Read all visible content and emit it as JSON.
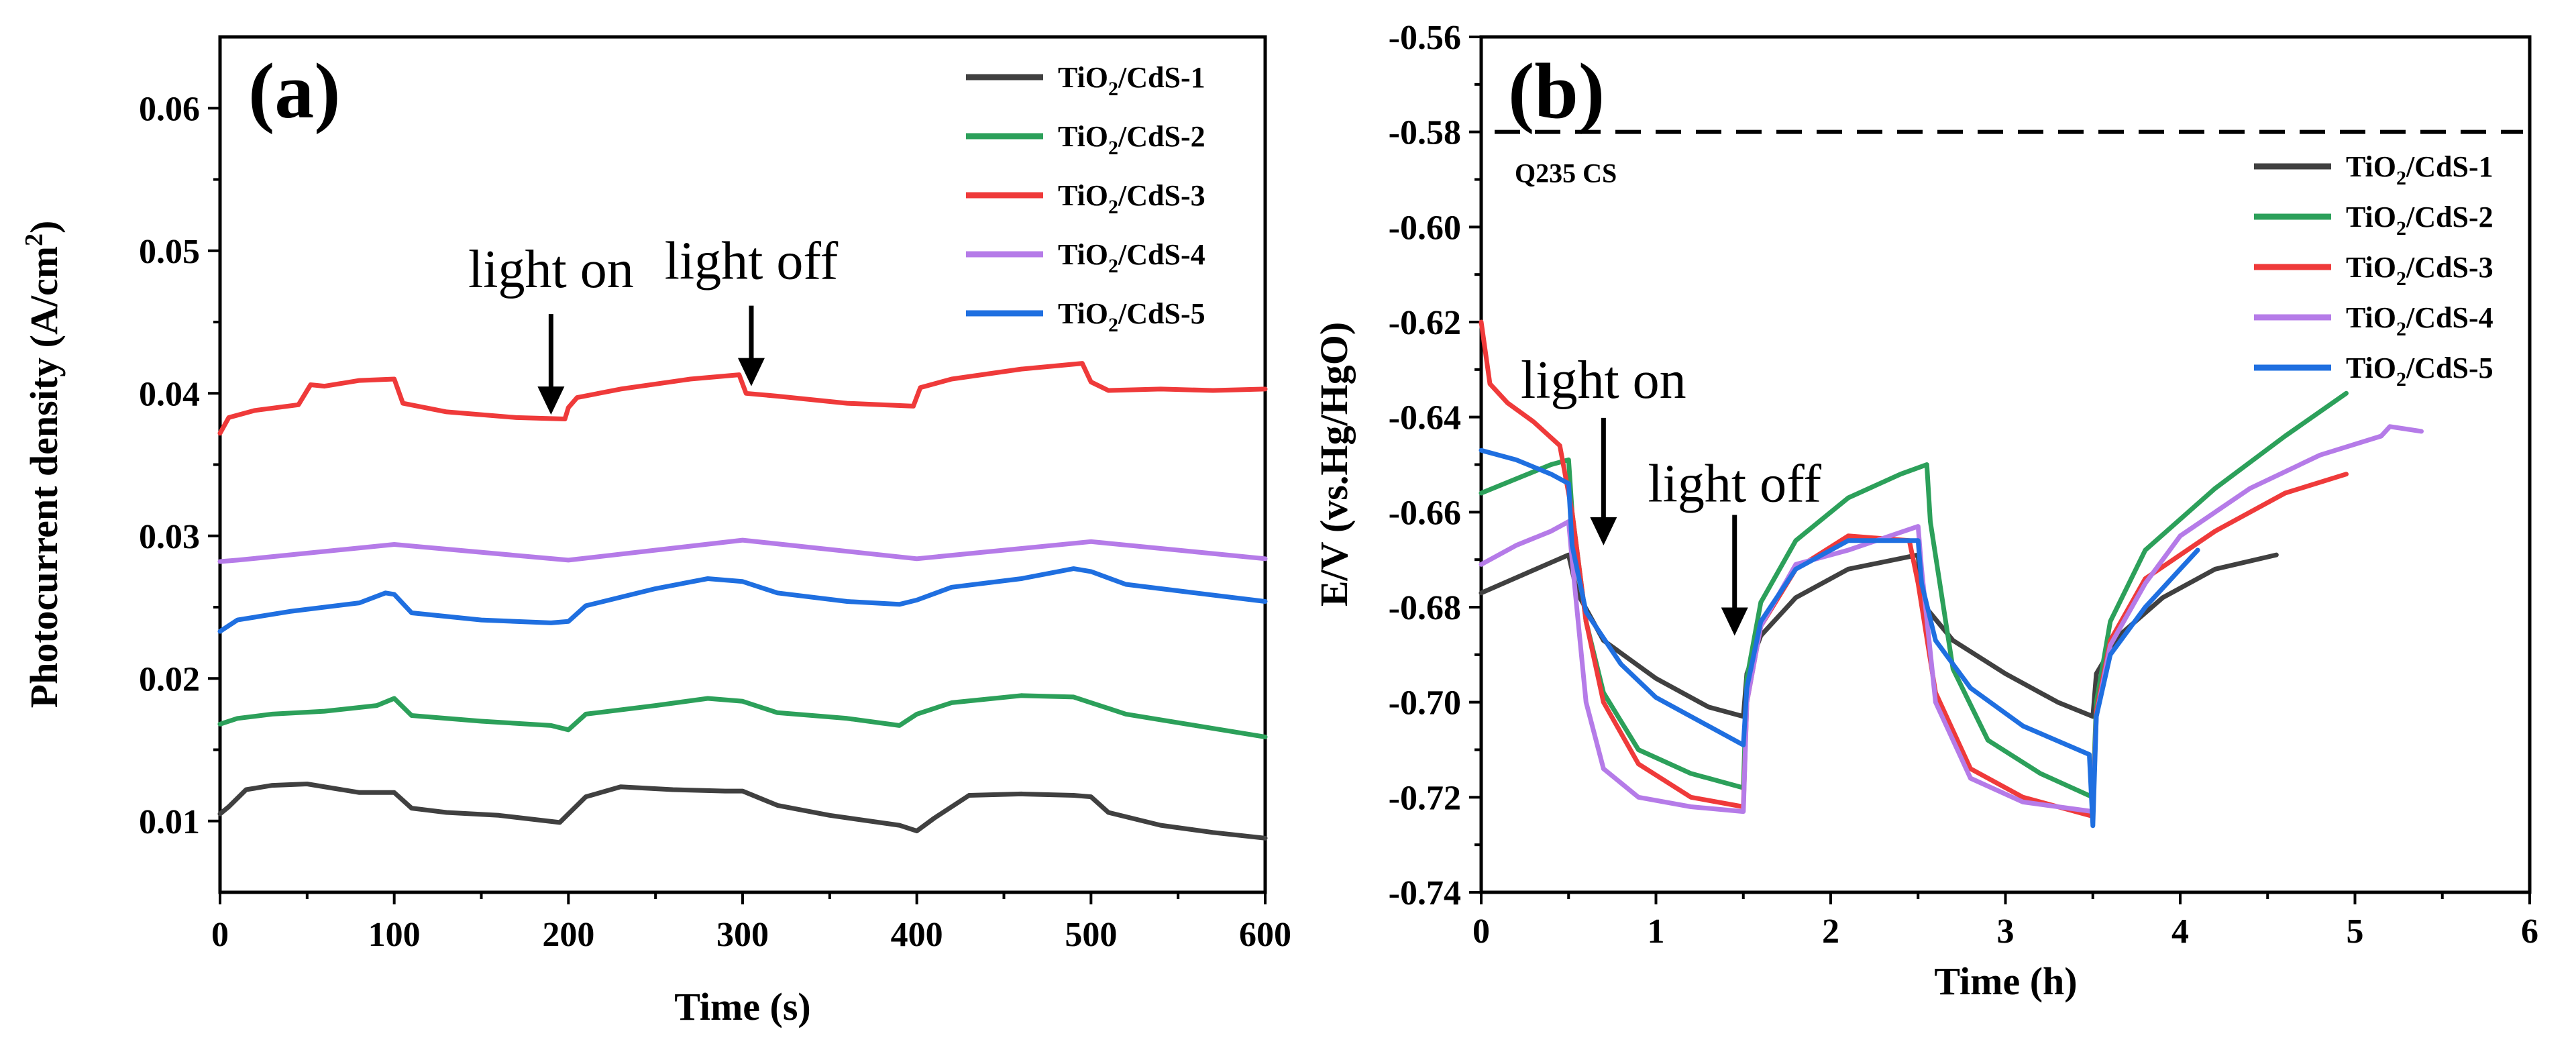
{
  "colors": {
    "s1": "#404040",
    "s2": "#2ca05a",
    "s3": "#ef3a3a",
    "s4": "#b57be8",
    "s5": "#1f6fe0"
  },
  "chart_data": [
    {
      "panel_label": "(a)",
      "type": "line",
      "xlabel": "Time (s)",
      "ylabel_main": "Photocurrent density (A/cm",
      "ylabel_sup": "2",
      "ylabel_end": ")",
      "xlim": [
        0,
        600
      ],
      "ylim": [
        0.005,
        0.065
      ],
      "xticks": [
        0,
        100,
        200,
        300,
        400,
        500,
        600
      ],
      "yticks": [
        0.01,
        0.02,
        0.03,
        0.04,
        0.05,
        0.06
      ],
      "ytick_labels": [
        "0.01",
        "0.02",
        "0.03",
        "0.04",
        "0.05",
        "0.06"
      ],
      "annotations": [
        {
          "text": "light on",
          "at": [
            190,
            0.0385
          ]
        },
        {
          "text": "light off",
          "at": [
            305,
            0.0405
          ]
        }
      ],
      "series": [
        {
          "name_base": "TiO",
          "name_sub": "2",
          "name_rest": "/CdS-1",
          "color_key": "s1",
          "x": [
            0,
            5,
            15,
            30,
            50,
            80,
            100,
            110,
            130,
            160,
            195,
            200,
            210,
            230,
            260,
            290,
            300,
            320,
            350,
            390,
            400,
            410,
            430,
            460,
            490,
            500,
            510,
            540,
            570,
            600
          ],
          "y": [
            0.0105,
            0.011,
            0.0122,
            0.0125,
            0.0126,
            0.012,
            0.012,
            0.0109,
            0.0106,
            0.0104,
            0.0099,
            0.0105,
            0.0117,
            0.0124,
            0.0122,
            0.0121,
            0.0121,
            0.0111,
            0.0104,
            0.0097,
            0.0093,
            0.0102,
            0.0118,
            0.0119,
            0.0118,
            0.0117,
            0.0106,
            0.0097,
            0.0092,
            0.0088
          ]
        },
        {
          "name_base": "TiO",
          "name_sub": "2",
          "name_rest": "/CdS-2",
          "color_key": "s2",
          "x": [
            0,
            10,
            30,
            60,
            90,
            100,
            110,
            150,
            190,
            200,
            210,
            250,
            280,
            300,
            320,
            360,
            390,
            400,
            420,
            460,
            490,
            500,
            520,
            560,
            600
          ],
          "y": [
            0.0168,
            0.0172,
            0.0175,
            0.0177,
            0.0181,
            0.0186,
            0.0174,
            0.017,
            0.0167,
            0.0164,
            0.0175,
            0.0181,
            0.0186,
            0.0184,
            0.0176,
            0.0172,
            0.0167,
            0.0175,
            0.0183,
            0.0188,
            0.0187,
            0.0183,
            0.0175,
            0.0167,
            0.0159
          ]
        },
        {
          "name_base": "TiO",
          "name_sub": "2",
          "name_rest": "/CdS-3",
          "color_key": "s3",
          "x": [
            0,
            5,
            20,
            45,
            52,
            60,
            80,
            100,
            105,
            130,
            170,
            198,
            200,
            205,
            230,
            270,
            298,
            302,
            320,
            360,
            398,
            402,
            420,
            460,
            495,
            500,
            510,
            540,
            570,
            600
          ],
          "y": [
            0.0372,
            0.0383,
            0.0388,
            0.0392,
            0.0406,
            0.0405,
            0.0409,
            0.041,
            0.0393,
            0.0387,
            0.0383,
            0.0382,
            0.039,
            0.0397,
            0.0403,
            0.041,
            0.0413,
            0.04,
            0.0398,
            0.0393,
            0.0391,
            0.0404,
            0.041,
            0.0417,
            0.0421,
            0.0408,
            0.0402,
            0.0403,
            0.0402,
            0.0403
          ]
        },
        {
          "name_base": "TiO",
          "name_sub": "2",
          "name_rest": "/CdS-4",
          "color_key": "s4",
          "x": [
            0,
            10,
            100,
            200,
            300,
            400,
            500,
            600
          ],
          "y": [
            0.0282,
            0.0283,
            0.0294,
            0.0283,
            0.0297,
            0.0284,
            0.0296,
            0.0284
          ]
        },
        {
          "name_base": "TiO",
          "name_sub": "2",
          "name_rest": "/CdS-5",
          "color_key": "s5",
          "x": [
            0,
            10,
            40,
            80,
            95,
            100,
            110,
            150,
            190,
            200,
            210,
            250,
            280,
            300,
            320,
            360,
            390,
            400,
            420,
            460,
            490,
            500,
            520,
            560,
            600
          ],
          "y": [
            0.0233,
            0.0241,
            0.0247,
            0.0253,
            0.026,
            0.0259,
            0.0246,
            0.0241,
            0.0239,
            0.024,
            0.0251,
            0.0263,
            0.027,
            0.0268,
            0.026,
            0.0254,
            0.0252,
            0.0255,
            0.0264,
            0.027,
            0.0277,
            0.0275,
            0.0266,
            0.026,
            0.0254
          ]
        }
      ]
    },
    {
      "panel_label": "(b)",
      "type": "line",
      "xlabel": "Time (h)",
      "ylabel": "E/V (vs.Hg/HgO)",
      "xlim": [
        0,
        6
      ],
      "ylim": [
        -0.74,
        -0.56
      ],
      "xticks": [
        0,
        1,
        2,
        3,
        4,
        5,
        6
      ],
      "yticks": [
        -0.74,
        -0.72,
        -0.7,
        -0.68,
        -0.66,
        -0.64,
        -0.62,
        -0.6,
        -0.58,
        -0.56
      ],
      "ytick_labels": [
        "-0.74",
        "-0.72",
        "-0.70",
        "-0.68",
        "-0.66",
        "-0.64",
        "-0.62",
        "-0.60",
        "-0.58",
        "-0.56"
      ],
      "reference_line": {
        "y": -0.58,
        "label": "Q235 CS"
      },
      "annotations": [
        {
          "text": "light on",
          "at": [
            0.7,
            -0.667
          ]
        },
        {
          "text": "light off",
          "at": [
            1.45,
            -0.686
          ]
        }
      ],
      "series": [
        {
          "name_base": "TiO",
          "name_sub": "2",
          "name_rest": "/CdS-1",
          "color_key": "s1",
          "x": [
            0,
            0.25,
            0.5,
            0.55,
            0.7,
            1.0,
            1.3,
            1.5,
            1.52,
            1.6,
            1.8,
            2.1,
            2.5,
            2.52,
            2.7,
            3.0,
            3.3,
            3.5,
            3.52,
            3.65,
            3.9,
            4.2,
            4.55
          ],
          "y": [
            -0.677,
            -0.673,
            -0.669,
            -0.677,
            -0.687,
            -0.695,
            -0.701,
            -0.703,
            -0.694,
            -0.686,
            -0.678,
            -0.672,
            -0.669,
            -0.679,
            -0.687,
            -0.694,
            -0.7,
            -0.703,
            -0.694,
            -0.686,
            -0.678,
            -0.672,
            -0.669
          ]
        },
        {
          "name_base": "TiO",
          "name_sub": "2",
          "name_rest": "/CdS-2",
          "color_key": "s2",
          "x": [
            0,
            0.2,
            0.4,
            0.5,
            0.52,
            0.6,
            0.7,
            0.9,
            1.2,
            1.5,
            1.52,
            1.6,
            1.8,
            2.1,
            2.4,
            2.55,
            2.57,
            2.7,
            2.9,
            3.2,
            3.5,
            3.52,
            3.6,
            3.8,
            4.2,
            4.6,
            4.95
          ],
          "y": [
            -0.656,
            -0.653,
            -0.65,
            -0.649,
            -0.66,
            -0.683,
            -0.698,
            -0.71,
            -0.715,
            -0.718,
            -0.695,
            -0.679,
            -0.666,
            -0.657,
            -0.652,
            -0.65,
            -0.662,
            -0.693,
            -0.708,
            -0.715,
            -0.72,
            -0.7,
            -0.683,
            -0.668,
            -0.655,
            -0.644,
            -0.635
          ]
        },
        {
          "name_base": "TiO",
          "name_sub": "2",
          "name_rest": "/CdS-3",
          "color_key": "s3",
          "x": [
            0,
            0.05,
            0.15,
            0.3,
            0.45,
            0.52,
            0.6,
            0.7,
            0.9,
            1.2,
            1.5,
            1.52,
            1.6,
            1.8,
            2.1,
            2.45,
            2.5,
            2.6,
            2.8,
            3.1,
            3.5,
            3.52,
            3.6,
            3.8,
            4.2,
            4.6,
            4.95
          ],
          "y": [
            -0.62,
            -0.633,
            -0.637,
            -0.641,
            -0.646,
            -0.66,
            -0.683,
            -0.7,
            -0.713,
            -0.72,
            -0.722,
            -0.7,
            -0.684,
            -0.672,
            -0.665,
            -0.666,
            -0.675,
            -0.698,
            -0.714,
            -0.72,
            -0.724,
            -0.702,
            -0.687,
            -0.674,
            -0.664,
            -0.656,
            -0.652
          ]
        },
        {
          "name_base": "TiO",
          "name_sub": "2",
          "name_rest": "/CdS-4",
          "color_key": "s4",
          "x": [
            0,
            0.2,
            0.4,
            0.5,
            0.52,
            0.6,
            0.7,
            0.9,
            1.2,
            1.5,
            1.52,
            1.6,
            1.8,
            2.1,
            2.5,
            2.52,
            2.6,
            2.8,
            3.1,
            3.5,
            3.52,
            3.6,
            3.8,
            4.0,
            4.4,
            4.8,
            5.15,
            5.2,
            5.38
          ],
          "y": [
            -0.671,
            -0.667,
            -0.664,
            -0.662,
            -0.67,
            -0.7,
            -0.714,
            -0.72,
            -0.722,
            -0.723,
            -0.7,
            -0.684,
            -0.671,
            -0.668,
            -0.663,
            -0.672,
            -0.7,
            -0.716,
            -0.721,
            -0.723,
            -0.703,
            -0.688,
            -0.675,
            -0.665,
            -0.655,
            -0.648,
            -0.644,
            -0.642,
            -0.643
          ]
        },
        {
          "name_base": "TiO",
          "name_sub": "2",
          "name_rest": "/CdS-5",
          "color_key": "s5",
          "x": [
            0,
            0.2,
            0.4,
            0.5,
            0.52,
            0.6,
            0.8,
            1.0,
            1.3,
            1.5,
            1.52,
            1.6,
            1.8,
            2.1,
            2.5,
            2.52,
            2.6,
            2.8,
            3.1,
            3.48,
            3.5,
            3.52,
            3.6,
            3.8,
            4.0,
            4.1
          ],
          "y": [
            -0.647,
            -0.649,
            -0.652,
            -0.654,
            -0.667,
            -0.681,
            -0.692,
            -0.699,
            -0.705,
            -0.709,
            -0.697,
            -0.683,
            -0.672,
            -0.666,
            -0.666,
            -0.675,
            -0.687,
            -0.697,
            -0.705,
            -0.711,
            -0.726,
            -0.703,
            -0.69,
            -0.68,
            -0.672,
            -0.668
          ]
        }
      ]
    }
  ]
}
